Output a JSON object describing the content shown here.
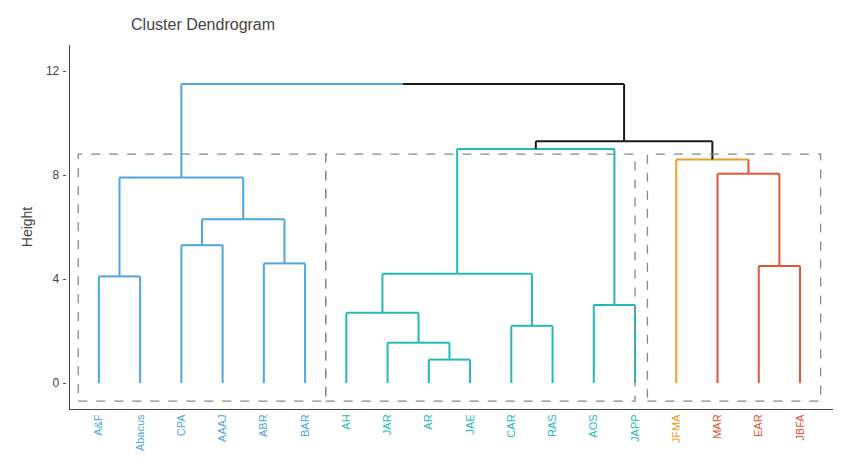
{
  "chart_data": {
    "type": "dendrogram",
    "title": "Cluster Dendrogram",
    "ylabel": "Height",
    "categories": [
      "A&F",
      "Abacus",
      "CPA",
      "AAAJ",
      "ABR",
      "BAR",
      "AH",
      "JAR",
      "AR",
      "JAE",
      "CAR",
      "RAS",
      "AOS",
      "JAPP",
      "JFMA",
      "MAR",
      "EAR",
      "JBFA"
    ],
    "colors": [
      "#4ea6dc",
      "#4ea6dc",
      "#4ea6dc",
      "#4ea6dc",
      "#4ea6dc",
      "#4ea6dc",
      "#26b8b8",
      "#26b8b8",
      "#26b8b8",
      "#26b8b8",
      "#26b8b8",
      "#26b8b8",
      "#26b8b8",
      "#26b8b8",
      "#e8a020",
      "#e05535",
      "#e05535",
      "#e05535"
    ],
    "merges": [
      {
        "left": "A&F",
        "right": "Abacus",
        "height": 4.1,
        "colors": [
          "#4ea6dc",
          "#4ea6dc",
          "#4ea6dc",
          "#4ea6dc"
        ]
      },
      {
        "left": "CPA",
        "right": "AAAJ",
        "height": 5.3,
        "colors": [
          "#4ea6dc",
          "#4ea6dc",
          "#4ea6dc",
          "#4ea6dc"
        ]
      },
      {
        "left": "ABR",
        "right": "BAR",
        "height": 4.6,
        "colors": [
          "#4ea6dc",
          "#4ea6dc",
          "#4ea6dc",
          "#4ea6dc"
        ]
      },
      {
        "left": 1,
        "right": 2,
        "height": 6.3,
        "colors": [
          "#4ea6dc",
          "#4ea6dc",
          "#4ea6dc",
          "#4ea6dc"
        ]
      },
      {
        "left": 0,
        "right": 3,
        "height": 7.9,
        "colors": [
          "#4ea6dc",
          "#4ea6dc",
          "#4ea6dc",
          "#4ea6dc"
        ]
      },
      {
        "left": "AR",
        "right": "JAE",
        "height": 0.9,
        "colors": [
          "#26b8b8",
          "#26b8b8",
          "#26b8b8",
          "#26b8b8"
        ]
      },
      {
        "left": "JAR",
        "right": 5,
        "height": 1.55,
        "colors": [
          "#26b8b8",
          "#26b8b8",
          "#26b8b8",
          "#26b8b8"
        ]
      },
      {
        "left": "AH",
        "right": 6,
        "height": 2.7,
        "colors": [
          "#26b8b8",
          "#26b8b8",
          "#26b8b8",
          "#26b8b8"
        ]
      },
      {
        "left": "CAR",
        "right": "RAS",
        "height": 2.2,
        "colors": [
          "#26b8b8",
          "#26b8b8",
          "#26b8b8",
          "#26b8b8"
        ]
      },
      {
        "left": 7,
        "right": 8,
        "height": 4.2,
        "colors": [
          "#26b8b8",
          "#26b8b8",
          "#26b8b8",
          "#26b8b8"
        ]
      },
      {
        "left": "AOS",
        "right": "JAPP",
        "height": 3.0,
        "colors": [
          "#26b8b8",
          "#26b8b8",
          "#26b8b8",
          "#26b8b8"
        ]
      },
      {
        "left": 9,
        "right": 10,
        "height": 9.0,
        "colors": [
          "#26b8b8",
          "#26b8b8",
          "#26b8b8",
          "#26b8b8"
        ]
      },
      {
        "left": "EAR",
        "right": "JBFA",
        "height": 4.5,
        "colors": [
          "#e05535",
          "#e05535",
          "#e05535",
          "#e05535"
        ]
      },
      {
        "left": "MAR",
        "right": 12,
        "height": 8.05,
        "colors": [
          "#e05535",
          "#e05535",
          "#e05535",
          "#e05535"
        ]
      },
      {
        "left": "JFMA",
        "right": 13,
        "height": 8.6,
        "colors": [
          "#e8a020",
          "#e05535",
          "#e8a020",
          "#e8a020"
        ]
      },
      {
        "left": 11,
        "right": 14,
        "height": 9.3,
        "colors": [
          "#1a1a1a",
          "#1a1a1a",
          "#1a1a1a",
          "#1a1a1a"
        ]
      },
      {
        "left": 4,
        "right": 15,
        "height": 11.5,
        "colors": [
          "#4ea6dc",
          "#1a1a1a",
          "#4ea6dc",
          "#1a1a1a"
        ]
      }
    ],
    "boxes": [
      {
        "x": 0.5,
        "y": -0.7,
        "width": 6.0,
        "height": 9.5,
        "color": "#888888",
        "line_style": "dash"
      },
      {
        "x": 6.5,
        "y": -0.7,
        "width": 7.5,
        "height": 9.5,
        "color": "#888888",
        "line_style": "dash"
      },
      {
        "x": 14.3,
        "y": -0.7,
        "width": 4.2,
        "height": 9.5,
        "color": "#888888",
        "line_style": "dash"
      }
    ],
    "xlim": [
      0.3,
      18.8
    ],
    "ylim": [
      -1.0,
      13.0
    ],
    "yticks": [
      {
        "value": 0,
        "label": "0 -"
      },
      {
        "value": 4,
        "label": "4 -"
      },
      {
        "value": 8,
        "label": "8 -"
      },
      {
        "value": 12,
        "label": "12 -"
      }
    ],
    "grid": false
  }
}
